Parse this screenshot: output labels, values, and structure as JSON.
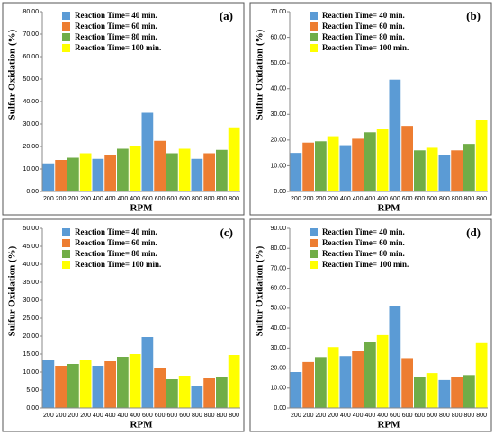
{
  "chart_data": [
    {
      "type": "bar",
      "title": "(a)",
      "xlabel": "RPM",
      "ylabel": "Sulfur Oxidation (%)",
      "categories": [
        "200",
        "400",
        "600",
        "800"
      ],
      "series": [
        {
          "name": "Reaction Time= 40 min.",
          "color": "#5b9bd5",
          "values": [
            12.5,
            14.5,
            35,
            14.5
          ]
        },
        {
          "name": "Reaction Time= 60 min.",
          "color": "#ed7d31",
          "values": [
            14,
            16,
            22.5,
            17
          ]
        },
        {
          "name": "Reaction Time= 80 min.",
          "color": "#70ad47",
          "values": [
            15,
            19,
            17,
            18.5
          ]
        },
        {
          "name": "Reaction Time= 100 min.",
          "color": "#ffff00",
          "values": [
            17,
            20,
            19,
            28.5
          ]
        }
      ],
      "ylim": [
        0,
        80
      ],
      "yticks": [
        {
          "value": 0,
          "label": "0.00"
        },
        {
          "value": 10,
          "label": "10.00"
        },
        {
          "value": 20,
          "label": "20.00"
        },
        {
          "value": 30,
          "label": "30.00"
        },
        {
          "value": 40,
          "label": "40.00"
        },
        {
          "value": 50,
          "label": "50.00"
        },
        {
          "value": 60,
          "label": "60.00"
        },
        {
          "value": 70,
          "label": "70.00"
        },
        {
          "value": 80,
          "label": "80.00"
        }
      ]
    },
    {
      "type": "bar",
      "title": "(b)",
      "xlabel": "RPM",
      "ylabel": "Sulfur Oxidation (%)",
      "categories": [
        "200",
        "400",
        "600",
        "800"
      ],
      "series": [
        {
          "name": "Reaction Time= 40 min.",
          "color": "#5b9bd5",
          "values": [
            15,
            18,
            43.5,
            14
          ]
        },
        {
          "name": "Reaction Time= 60 min.",
          "color": "#ed7d31",
          "values": [
            19,
            20.5,
            25.5,
            16
          ]
        },
        {
          "name": "Reaction Time= 80 min.",
          "color": "#70ad47",
          "values": [
            19.5,
            23,
            16,
            18.5
          ]
        },
        {
          "name": "Reaction Time= 100 min.",
          "color": "#ffff00",
          "values": [
            21.5,
            24.5,
            17,
            28
          ]
        }
      ],
      "ylim": [
        0,
        70
      ],
      "yticks": [
        {
          "value": 0,
          "label": "0.00"
        },
        {
          "value": 10,
          "label": "10.00"
        },
        {
          "value": 20,
          "label": "20.00"
        },
        {
          "value": 30,
          "label": "30.00"
        },
        {
          "value": 40,
          "label": "40.00"
        },
        {
          "value": 50,
          "label": "50.00"
        },
        {
          "value": 60,
          "label": "60.00"
        },
        {
          "value": 70,
          "label": "70.00"
        }
      ]
    },
    {
      "type": "bar",
      "title": "(c)",
      "xlabel": "RPM",
      "ylabel": "Sulfur Oxidation (%)",
      "categories": [
        "200",
        "400",
        "600",
        "800"
      ],
      "series": [
        {
          "name": "Reaction Time= 40 min.",
          "color": "#5b9bd5",
          "values": [
            13.5,
            11.75,
            19.75,
            6.25
          ]
        },
        {
          "name": "Reaction Time= 60 min.",
          "color": "#ed7d31",
          "values": [
            11.75,
            13,
            11.25,
            8.25
          ]
        },
        {
          "name": "Reaction Time= 80 min.",
          "color": "#70ad47",
          "values": [
            12.25,
            14.25,
            8,
            8.75
          ]
        },
        {
          "name": "Reaction Time= 100 min.",
          "color": "#ffff00",
          "values": [
            13.5,
            15,
            9,
            14.75
          ]
        }
      ],
      "ylim": [
        0,
        50
      ],
      "yticks": [
        {
          "value": 0,
          "label": "0.00"
        },
        {
          "value": 5,
          "label": "5.00"
        },
        {
          "value": 10,
          "label": "10.00"
        },
        {
          "value": 15,
          "label": "15.00"
        },
        {
          "value": 20,
          "label": "20.00"
        },
        {
          "value": 25,
          "label": "25.00"
        },
        {
          "value": 30,
          "label": "30.00"
        },
        {
          "value": 35,
          "label": "35.00"
        },
        {
          "value": 40,
          "label": "40.00"
        },
        {
          "value": 45,
          "label": "45.00"
        },
        {
          "value": 50,
          "label": "50.00"
        }
      ]
    },
    {
      "type": "bar",
      "title": "(d)",
      "xlabel": "RPM",
      "ylabel": "Sulfur Oxidation (%)",
      "categories": [
        "200",
        "400",
        "600",
        "800"
      ],
      "series": [
        {
          "name": "Reaction Time= 40 min.",
          "color": "#5b9bd5",
          "values": [
            18,
            26,
            51,
            14
          ]
        },
        {
          "name": "Reaction Time= 60 min.",
          "color": "#ed7d31",
          "values": [
            23,
            28.5,
            25,
            15.5
          ]
        },
        {
          "name": "Reaction Time= 80 min.",
          "color": "#70ad47",
          "values": [
            25.5,
            33,
            15.5,
            16.5
          ]
        },
        {
          "name": "Reaction Time= 100 min.",
          "color": "#ffff00",
          "values": [
            30.5,
            36.5,
            17.5,
            32.5
          ]
        }
      ],
      "ylim": [
        0,
        90
      ],
      "yticks": [
        {
          "value": 0,
          "label": "0.00"
        },
        {
          "value": 10,
          "label": "10.00"
        },
        {
          "value": 20,
          "label": "20.00"
        },
        {
          "value": 30,
          "label": "30.00"
        },
        {
          "value": 40,
          "label": "40.00"
        },
        {
          "value": 50,
          "label": "50.00"
        },
        {
          "value": 60,
          "label": "60.00"
        },
        {
          "value": 70,
          "label": "70.00"
        },
        {
          "value": 80,
          "label": "80.00"
        },
        {
          "value": 90,
          "label": "90.00"
        }
      ]
    }
  ]
}
